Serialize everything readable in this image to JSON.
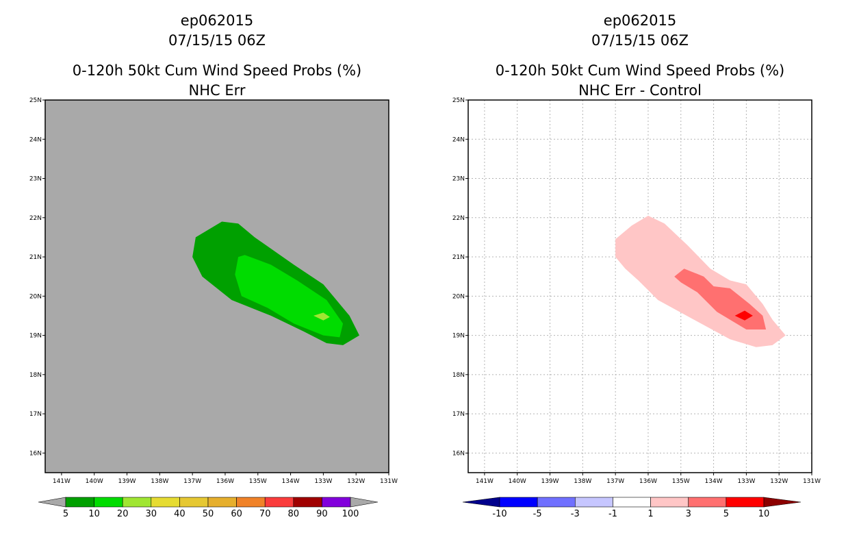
{
  "left_panel": {
    "storm_id": "ep062015",
    "datetime": "07/15/15 06Z",
    "title": "0-120h 50kt Cum Wind Speed Probs (%)",
    "subtitle": "NHC Err"
  },
  "right_panel": {
    "storm_id": "ep062015",
    "datetime": "07/15/15 06Z",
    "title": "0-120h 50kt Cum Wind Speed Probs (%)",
    "subtitle": "NHC Err - Control"
  },
  "chart_data": [
    {
      "type": "contour-map",
      "title": "0-120h 50kt Cum Wind Speed Probs (%)",
      "subtitle": "NHC Err",
      "background": "#a9a9a9",
      "grid": false,
      "xlim": [
        -141.5,
        -131
      ],
      "ylim": [
        15.5,
        25
      ],
      "x_ticks": [
        -141,
        -140,
        -139,
        -138,
        -137,
        -136,
        -135,
        -134,
        -133,
        -132,
        -131
      ],
      "x_tick_labels": [
        "141W",
        "140W",
        "139W",
        "138W",
        "137W",
        "136W",
        "135W",
        "134W",
        "133W",
        "132W",
        "131W"
      ],
      "y_ticks": [
        16,
        17,
        18,
        19,
        20,
        21,
        22,
        23,
        24,
        25
      ],
      "y_tick_labels": [
        "16N",
        "17N",
        "18N",
        "19N",
        "20N",
        "21N",
        "22N",
        "23N",
        "24N",
        "25N"
      ],
      "contours": [
        {
          "level": "5-10",
          "color": "#00a000",
          "polygon": [
            [
              -137,
              21.0
            ],
            [
              -136.9,
              21.5
            ],
            [
              -136.1,
              21.9
            ],
            [
              -135.6,
              21.85
            ],
            [
              -135.1,
              21.5
            ],
            [
              -133.9,
              20.8
            ],
            [
              -133.0,
              20.3
            ],
            [
              -132.2,
              19.5
            ],
            [
              -131.9,
              19.0
            ],
            [
              -132.4,
              18.75
            ],
            [
              -132.9,
              18.8
            ],
            [
              -133.6,
              19.1
            ],
            [
              -134.6,
              19.5
            ],
            [
              -135.8,
              19.9
            ],
            [
              -136.7,
              20.5
            ]
          ]
        },
        {
          "level": "10-20",
          "color": "#00dc00",
          "polygon": [
            [
              -135.6,
              21.0
            ],
            [
              -135.4,
              21.05
            ],
            [
              -134.6,
              20.8
            ],
            [
              -133.8,
              20.4
            ],
            [
              -132.9,
              19.9
            ],
            [
              -132.4,
              19.3
            ],
            [
              -132.5,
              18.95
            ],
            [
              -133.0,
              19.0
            ],
            [
              -133.9,
              19.3
            ],
            [
              -134.7,
              19.7
            ],
            [
              -135.5,
              20.0
            ],
            [
              -135.7,
              20.55
            ]
          ]
        },
        {
          "level": "20-30",
          "color": "#a0e632",
          "polygon": [
            [
              -133.3,
              19.5
            ],
            [
              -133.0,
              19.58
            ],
            [
              -132.8,
              19.47
            ],
            [
              -133.0,
              19.38
            ]
          ]
        }
      ],
      "colorbar": {
        "boundaries": [
          "5",
          "10",
          "20",
          "30",
          "40",
          "50",
          "60",
          "70",
          "80",
          "90",
          "100"
        ],
        "colors": [
          "#00a000",
          "#00dc00",
          "#a0e632",
          "#e6dc32",
          "#e6c832",
          "#e6af2d",
          "#f08228",
          "#fa3c3c",
          "#a00000",
          "#8200dc"
        ],
        "under_color": "#a9a9a9",
        "over_color": "#a9a9a9"
      }
    },
    {
      "type": "contour-map",
      "title": "0-120h 50kt Cum Wind Speed Probs (%)",
      "subtitle": "NHC Err - Control",
      "background": "#ffffff",
      "grid": true,
      "xlim": [
        -141.5,
        -131
      ],
      "ylim": [
        15.5,
        25
      ],
      "x_ticks": [
        -141,
        -140,
        -139,
        -138,
        -137,
        -136,
        -135,
        -134,
        -133,
        -132,
        -131
      ],
      "x_tick_labels": [
        "141W",
        "140W",
        "139W",
        "138W",
        "137W",
        "136W",
        "135W",
        "134W",
        "133W",
        "132W",
        "131W"
      ],
      "y_ticks": [
        16,
        17,
        18,
        19,
        20,
        21,
        22,
        23,
        24,
        25
      ],
      "y_tick_labels": [
        "16N",
        "17N",
        "18N",
        "19N",
        "20N",
        "21N",
        "22N",
        "23N",
        "24N",
        "25N"
      ],
      "contours": [
        {
          "level": "1-3",
          "color": "#ffc6c6",
          "polygon": [
            [
              -137,
              21.45
            ],
            [
              -136.5,
              21.8
            ],
            [
              -136.0,
              22.05
            ],
            [
              -135.5,
              21.85
            ],
            [
              -134.8,
              21.3
            ],
            [
              -134.1,
              20.7
            ],
            [
              -133.5,
              20.4
            ],
            [
              -133.0,
              20.3
            ],
            [
              -132.5,
              19.8
            ],
            [
              -132.2,
              19.4
            ],
            [
              -131.8,
              19.0
            ],
            [
              -132.2,
              18.75
            ],
            [
              -132.7,
              18.7
            ],
            [
              -133.5,
              18.9
            ],
            [
              -134.6,
              19.4
            ],
            [
              -135.7,
              19.9
            ],
            [
              -136.3,
              20.4
            ],
            [
              -136.7,
              20.7
            ],
            [
              -137,
              21.0
            ]
          ]
        },
        {
          "level": "3-5",
          "color": "#ff7070",
          "polygon": [
            [
              -135.2,
              20.5
            ],
            [
              -134.9,
              20.7
            ],
            [
              -134.3,
              20.5
            ],
            [
              -134.0,
              20.25
            ],
            [
              -133.5,
              20.2
            ],
            [
              -132.9,
              19.8
            ],
            [
              -132.5,
              19.5
            ],
            [
              -132.4,
              19.15
            ],
            [
              -133.0,
              19.15
            ],
            [
              -133.9,
              19.6
            ],
            [
              -134.5,
              20.1
            ],
            [
              -135.0,
              20.35
            ]
          ]
        },
        {
          "level": "5-10",
          "color": "#ff0000",
          "polygon": [
            [
              -133.35,
              19.5
            ],
            [
              -133.05,
              19.63
            ],
            [
              -132.8,
              19.5
            ],
            [
              -133.05,
              19.38
            ]
          ]
        }
      ],
      "colorbar": {
        "boundaries": [
          "-10",
          "-5",
          "-3",
          "-1",
          "1",
          "3",
          "5",
          "10"
        ],
        "colors": [
          "#0000ff",
          "#7070ff",
          "#c6c6ff",
          "#ffffff",
          "#ffc6c6",
          "#ff7070",
          "#ff0000"
        ],
        "under_color": "#00008c",
        "over_color": "#8c0000"
      }
    }
  ]
}
